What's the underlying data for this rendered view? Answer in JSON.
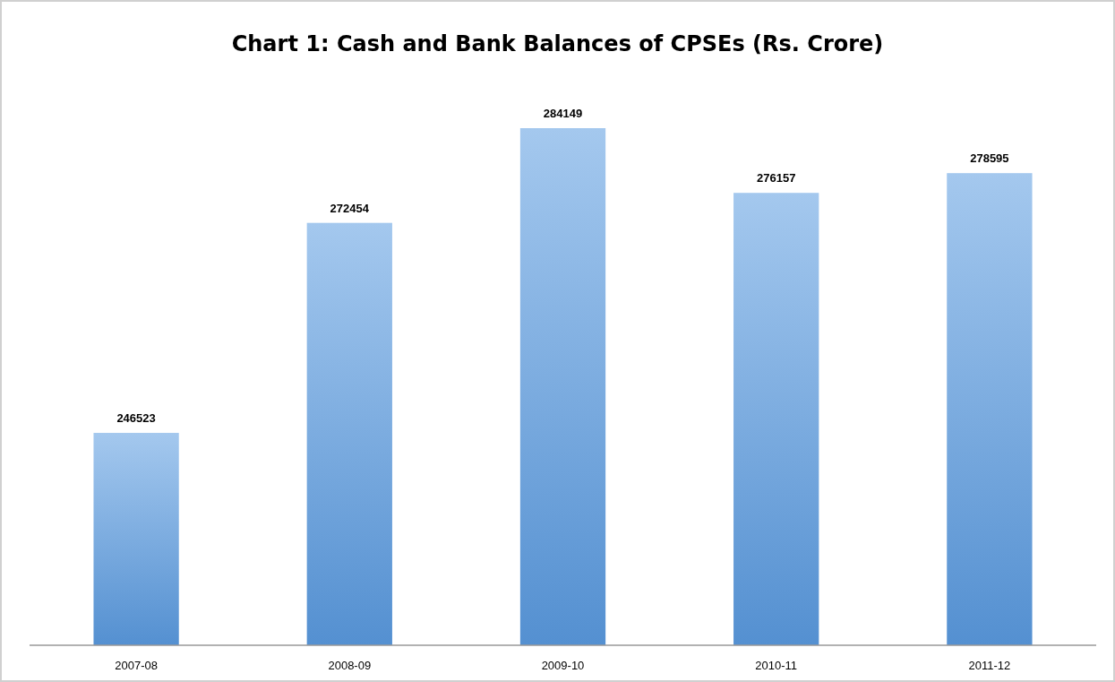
{
  "chart_data": {
    "type": "bar",
    "title": "Chart 1: Cash and Bank Balances of CPSEs (Rs. Crore)",
    "categories": [
      "2007-08",
      "2008-09",
      "2009-10",
      "2010-11",
      "2011-12"
    ],
    "values": [
      246523,
      272454,
      284149,
      276157,
      278595
    ],
    "color": "#5a9be0",
    "ylim": [
      220300,
      284149
    ],
    "tick_labels": "x",
    "data_labels": true
  }
}
